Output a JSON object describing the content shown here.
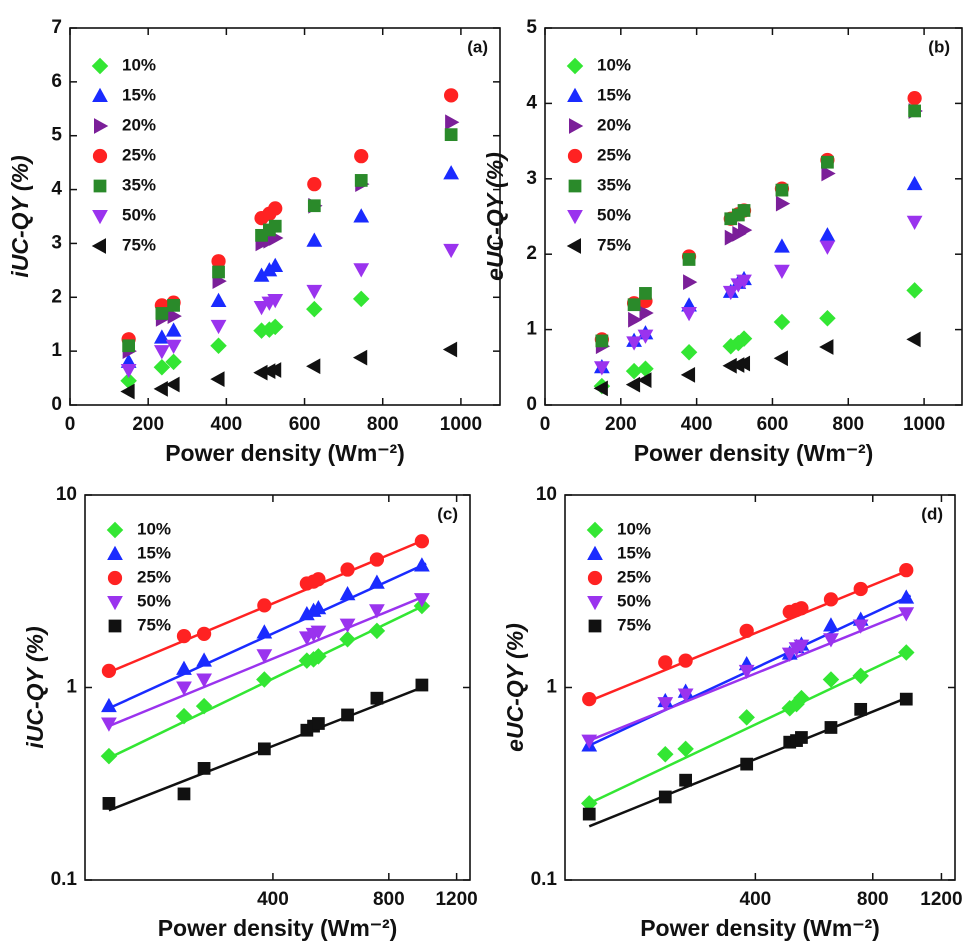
{
  "chart_data": [
    {
      "type": "scatter",
      "panel_label": "(a)",
      "xlabel": "Power density (Wm⁻²)",
      "ylabel": "iUC-QY (%)",
      "x": [
        150,
        235,
        265,
        380,
        490,
        510,
        525,
        625,
        745,
        975
      ],
      "xlim": [
        0,
        1100
      ],
      "xticks": [
        0,
        200,
        400,
        600,
        800,
        1000
      ],
      "ylim": [
        0,
        7
      ],
      "yticks": [
        0,
        1,
        2,
        3,
        4,
        5,
        6,
        7
      ],
      "log_scale": false,
      "series": [
        {
          "name": "10%",
          "color": "#33e633",
          "marker": "diamond",
          "values": [
            0.45,
            0.7,
            0.8,
            1.1,
            1.38,
            1.4,
            1.45,
            1.78,
            1.97,
            null
          ]
        },
        {
          "name": "15%",
          "color": "#1a2bff",
          "marker": "triangle-up",
          "values": [
            0.8,
            1.25,
            1.38,
            1.93,
            2.4,
            2.5,
            2.58,
            3.05,
            3.5,
            4.3
          ]
        },
        {
          "name": "20%",
          "color": "#7b1f99",
          "marker": "triangle-right",
          "values": [
            1.0,
            1.6,
            1.65,
            2.3,
            3.0,
            3.05,
            3.1,
            3.7,
            4.1,
            5.25
          ]
        },
        {
          "name": "25%",
          "color": "#ff2222",
          "marker": "circle",
          "values": [
            1.22,
            1.85,
            1.9,
            2.67,
            3.47,
            3.55,
            3.65,
            4.1,
            4.62,
            5.75
          ]
        },
        {
          "name": "35%",
          "color": "#2a8a2a",
          "marker": "square",
          "values": [
            1.1,
            1.7,
            1.85,
            2.47,
            3.15,
            3.25,
            3.32,
            3.7,
            4.17,
            5.02
          ]
        },
        {
          "name": "50%",
          "color": "#9a33ee",
          "marker": "triangle-down",
          "values": [
            0.65,
            1.0,
            1.1,
            1.47,
            1.82,
            1.9,
            1.95,
            2.12,
            2.52,
            2.88
          ]
        },
        {
          "name": "75%",
          "color": "#111111",
          "marker": "triangle-left",
          "values": [
            0.25,
            0.3,
            0.38,
            0.48,
            0.6,
            0.63,
            0.65,
            0.72,
            0.88,
            1.03
          ]
        }
      ]
    },
    {
      "type": "scatter",
      "panel_label": "(b)",
      "xlabel": "Power density (Wm⁻²)",
      "ylabel": "eUC-QY (%)",
      "x": [
        150,
        235,
        265,
        380,
        490,
        510,
        525,
        625,
        745,
        975
      ],
      "xlim": [
        0,
        1100
      ],
      "xticks": [
        0,
        200,
        400,
        600,
        800,
        1000
      ],
      "ylim": [
        0,
        5
      ],
      "yticks": [
        0,
        1,
        2,
        3,
        4,
        5
      ],
      "log_scale": false,
      "series": [
        {
          "name": "10%",
          "color": "#33e633",
          "marker": "diamond",
          "values": [
            0.25,
            0.45,
            0.48,
            0.7,
            0.78,
            0.82,
            0.88,
            1.1,
            1.15,
            1.52
          ]
        },
        {
          "name": "15%",
          "color": "#1a2bff",
          "marker": "triangle-up",
          "values": [
            0.5,
            0.85,
            0.95,
            1.32,
            1.5,
            1.62,
            1.67,
            2.1,
            2.25,
            2.93
          ]
        },
        {
          "name": "20%",
          "color": "#7b1f99",
          "marker": "triangle-right",
          "values": [
            0.78,
            1.13,
            1.22,
            1.63,
            2.22,
            2.27,
            2.32,
            2.67,
            3.07,
            3.9
          ]
        },
        {
          "name": "25%",
          "color": "#ff2222",
          "marker": "circle",
          "values": [
            0.87,
            1.35,
            1.38,
            1.97,
            2.47,
            2.53,
            2.58,
            2.87,
            3.25,
            4.07
          ]
        },
        {
          "name": "35%",
          "color": "#2a8a2a",
          "marker": "square",
          "values": [
            0.85,
            1.33,
            1.48,
            1.93,
            2.47,
            2.52,
            2.58,
            2.85,
            3.22,
            3.9
          ]
        },
        {
          "name": "50%",
          "color": "#9a33ee",
          "marker": "triangle-down",
          "values": [
            0.5,
            0.83,
            0.92,
            1.22,
            1.5,
            1.6,
            1.65,
            1.78,
            2.1,
            2.43
          ]
        },
        {
          "name": "75%",
          "color": "#111111",
          "marker": "triangle-left",
          "values": [
            0.22,
            0.27,
            0.33,
            0.4,
            0.52,
            0.53,
            0.55,
            0.62,
            0.77,
            0.87
          ]
        }
      ]
    },
    {
      "type": "scatter",
      "panel_label": "(c)",
      "xlabel": "Power density (Wm⁻²)",
      "ylabel": "iUC-QY (%)",
      "x": [
        150,
        235,
        265,
        380,
        490,
        510,
        525,
        625,
        745,
        975
      ],
      "xlim": [
        130,
        1300
      ],
      "xticks": [
        400,
        800,
        1200
      ],
      "ylim": [
        0.1,
        10
      ],
      "yticks": [
        0.1,
        1,
        10
      ],
      "log_scale": true,
      "series": [
        {
          "name": "10%",
          "color": "#33e633",
          "marker": "diamond",
          "values": [
            0.44,
            0.71,
            0.8,
            1.1,
            1.38,
            1.4,
            1.45,
            1.78,
            1.97,
            2.65
          ],
          "fit": {
            "x": [
              150,
              1000
            ],
            "values": [
              0.43,
              2.7
            ]
          }
        },
        {
          "name": "15%",
          "color": "#1a2bff",
          "marker": "triangle-up",
          "values": [
            0.8,
            1.25,
            1.38,
            1.93,
            2.4,
            2.5,
            2.58,
            3.05,
            3.5,
            4.3
          ],
          "fit": {
            "x": [
              150,
              1000
            ],
            "values": [
              0.78,
              4.4
            ]
          }
        },
        {
          "name": "25%",
          "color": "#ff2222",
          "marker": "circle",
          "values": [
            1.22,
            1.85,
            1.9,
            2.67,
            3.47,
            3.55,
            3.65,
            4.1,
            4.62,
            5.75
          ],
          "fit": {
            "x": [
              150,
              1000
            ],
            "values": [
              1.2,
              5.9
            ]
          }
        },
        {
          "name": "50%",
          "color": "#9a33ee",
          "marker": "triangle-down",
          "values": [
            0.65,
            1.0,
            1.1,
            1.47,
            1.82,
            1.9,
            1.95,
            2.12,
            2.52,
            2.88
          ],
          "fit": {
            "x": [
              150,
              1000
            ],
            "values": [
              0.63,
              3.0
            ]
          }
        },
        {
          "name": "75%",
          "color": "#111111",
          "marker": "square",
          "values": [
            0.25,
            0.28,
            0.38,
            0.48,
            0.6,
            0.63,
            0.65,
            0.72,
            0.88,
            1.03
          ],
          "fit": {
            "x": [
              150,
              1000
            ],
            "values": [
              0.23,
              1.02
            ]
          }
        }
      ]
    },
    {
      "type": "scatter",
      "panel_label": "(d)",
      "xlabel": "Power density (Wm⁻²)",
      "ylabel": "eUC-QY (%)",
      "x": [
        150,
        235,
        265,
        380,
        490,
        510,
        525,
        625,
        745,
        975
      ],
      "xlim": [
        130,
        1300
      ],
      "xticks": [
        400,
        800,
        1200
      ],
      "ylim": [
        0.1,
        10
      ],
      "yticks": [
        0.1,
        1,
        10
      ],
      "log_scale": true,
      "series": [
        {
          "name": "10%",
          "color": "#33e633",
          "marker": "diamond",
          "values": [
            0.25,
            0.45,
            0.48,
            0.7,
            0.78,
            0.82,
            0.88,
            1.1,
            1.15,
            1.52
          ],
          "fit": {
            "x": [
              150,
              1000
            ],
            "values": [
              0.25,
              1.55
            ]
          }
        },
        {
          "name": "15%",
          "color": "#1a2bff",
          "marker": "triangle-up",
          "values": [
            0.5,
            0.85,
            0.95,
            1.32,
            1.5,
            1.62,
            1.67,
            2.1,
            2.25,
            2.93
          ],
          "fit": {
            "x": [
              150,
              1000
            ],
            "values": [
              0.5,
              3.0
            ]
          }
        },
        {
          "name": "25%",
          "color": "#ff2222",
          "marker": "circle",
          "values": [
            0.87,
            1.35,
            1.38,
            1.97,
            2.47,
            2.53,
            2.58,
            2.87,
            3.25,
            4.07
          ],
          "fit": {
            "x": [
              150,
              1000
            ],
            "values": [
              0.85,
              4.1
            ]
          }
        },
        {
          "name": "50%",
          "color": "#9a33ee",
          "marker": "triangle-down",
          "values": [
            0.53,
            0.83,
            0.92,
            1.22,
            1.5,
            1.6,
            1.65,
            1.78,
            2.1,
            2.43
          ],
          "fit": {
            "x": [
              150,
              1000
            ],
            "values": [
              0.53,
              2.5
            ]
          }
        },
        {
          "name": "75%",
          "color": "#111111",
          "marker": "square",
          "values": [
            0.22,
            0.27,
            0.33,
            0.4,
            0.52,
            0.53,
            0.55,
            0.62,
            0.77,
            0.87
          ],
          "fit": {
            "x": [
              150,
              1000
            ],
            "values": [
              0.19,
              0.9
            ]
          }
        }
      ]
    }
  ]
}
